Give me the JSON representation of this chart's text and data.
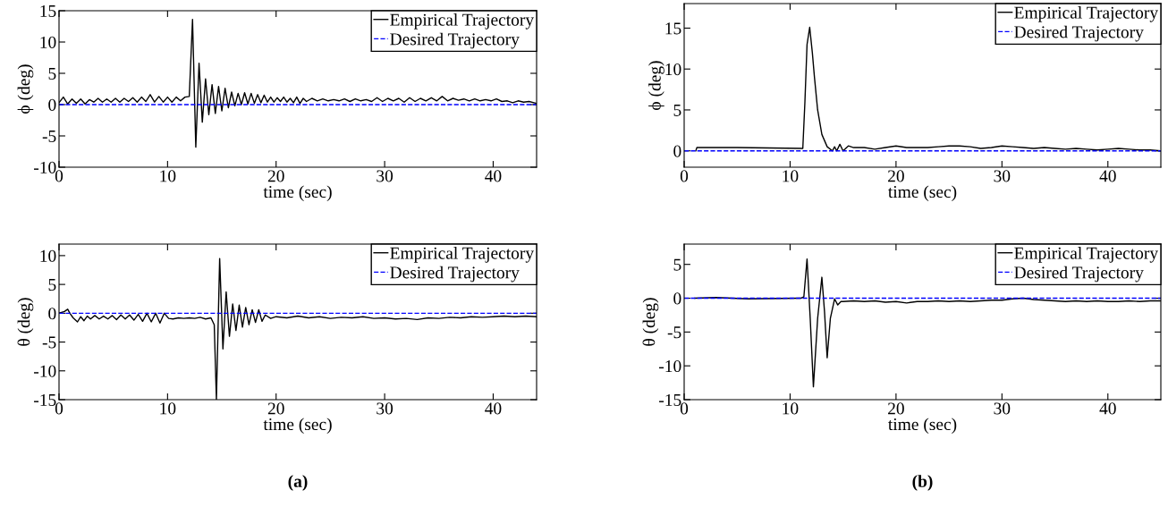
{
  "chart_data": [
    {
      "type": "line",
      "xlabel": "time (sec)",
      "ylabel": "ϕ (deg)",
      "xlim": [
        0,
        44
      ],
      "ylim": [
        -10,
        15
      ],
      "xticks": [
        0,
        10,
        20,
        30,
        40
      ],
      "yticks": [
        -10,
        -5,
        0,
        5,
        10,
        15
      ],
      "legend": "top right",
      "series": [
        {
          "name": "Empirical Trajectory",
          "color": "#000000",
          "line_style": "solid",
          "x": [
            0,
            0.4,
            0.8,
            1.2,
            1.6,
            2.0,
            2.4,
            2.8,
            3.2,
            3.6,
            4.0,
            4.4,
            4.8,
            5.2,
            5.6,
            6.0,
            6.4,
            6.8,
            7.2,
            7.6,
            8.0,
            8.4,
            8.8,
            9.2,
            9.6,
            10.0,
            10.4,
            10.8,
            11.2,
            11.6,
            12.0,
            12.3,
            12.6,
            12.9,
            13.2,
            13.5,
            13.8,
            14.1,
            14.4,
            14.7,
            15.0,
            15.3,
            15.6,
            15.9,
            16.2,
            16.5,
            16.8,
            17.1,
            17.4,
            17.7,
            18.0,
            18.3,
            18.6,
            18.9,
            19.2,
            19.5,
            19.8,
            20.1,
            20.4,
            20.7,
            21.0,
            21.3,
            21.6,
            21.9,
            22.2,
            22.5,
            22.8,
            23.3,
            23.8,
            24.3,
            24.8,
            25.3,
            25.8,
            26.3,
            26.8,
            27.3,
            27.8,
            28.3,
            28.8,
            29.3,
            29.8,
            30.3,
            30.8,
            31.3,
            31.8,
            32.3,
            32.8,
            33.3,
            33.8,
            34.3,
            34.8,
            35.3,
            35.8,
            36.3,
            36.8,
            37.3,
            37.8,
            38.3,
            38.8,
            39.3,
            39.8,
            40.3,
            40.8,
            41.3,
            41.8,
            42.3,
            42.8,
            43.3,
            44.0
          ],
          "values": [
            0.3,
            1.2,
            0.1,
            0.9,
            0.2,
            0.9,
            0.1,
            0.8,
            0.4,
            1.0,
            0.4,
            0.9,
            0.4,
            1.0,
            0.4,
            1.0,
            0.5,
            1.1,
            0.4,
            1.2,
            0.5,
            1.6,
            0.4,
            1.3,
            0.4,
            1.2,
            0.4,
            1.2,
            0.6,
            1.2,
            1.3,
            13.6,
            -6.8,
            6.6,
            -2.8,
            4.1,
            -1.6,
            3.2,
            -1.4,
            2.9,
            -1.0,
            2.6,
            -0.5,
            2.0,
            -0.2,
            1.8,
            0.0,
            1.9,
            0.1,
            1.8,
            0.2,
            1.6,
            0.3,
            1.5,
            0.4,
            1.2,
            0.4,
            1.1,
            0.5,
            1.2,
            0.4,
            1.0,
            0.3,
            1.2,
            0.2,
            1.0,
            0.5,
            1.0,
            0.6,
            0.9,
            0.6,
            0.8,
            0.6,
            0.9,
            0.5,
            0.9,
            0.6,
            0.8,
            0.5,
            1.1,
            0.5,
            1.0,
            0.6,
            1.0,
            0.4,
            1.1,
            0.5,
            1.0,
            0.6,
            1.1,
            0.6,
            1.3,
            0.6,
            1.0,
            0.7,
            0.9,
            0.6,
            0.9,
            0.6,
            0.8,
            0.6,
            0.9,
            0.5,
            0.6,
            0.3,
            0.6,
            0.4,
            0.5,
            0.2
          ]
        },
        {
          "name": "Desired Trajectory",
          "color": "#0000ff",
          "line_style": "dashed",
          "x": [
            0,
            44
          ],
          "values": [
            0,
            0
          ]
        }
      ]
    },
    {
      "type": "line",
      "xlabel": "time (sec)",
      "ylabel": "ϕ (deg)",
      "xlim": [
        0,
        45
      ],
      "ylim": [
        -2,
        18
      ],
      "xticks": [
        0,
        10,
        20,
        30,
        40
      ],
      "yticks": [
        0,
        5,
        10,
        15
      ],
      "legend": "top right",
      "series": [
        {
          "name": "Empirical Trajectory",
          "color": "#000000",
          "line_style": "solid",
          "x": [
            1.1,
            1.2,
            5,
            11.2,
            11.4,
            11.6,
            11.85,
            12.1,
            12.3,
            12.6,
            13.0,
            13.5,
            14.0,
            14.2,
            14.4,
            14.7,
            15.0,
            15.5,
            16,
            17,
            18,
            19,
            20,
            21,
            22,
            23,
            24,
            25,
            26,
            27,
            28,
            29,
            30,
            31,
            32,
            33,
            34,
            35,
            36,
            37,
            38,
            39,
            40,
            41,
            42,
            43,
            44,
            45
          ],
          "values": [
            0,
            0.4,
            0.4,
            0.3,
            6,
            13,
            15.1,
            12,
            9,
            5,
            2,
            0.5,
            0,
            0.5,
            0,
            0.8,
            0,
            0.6,
            0.4,
            0.4,
            0.2,
            0.4,
            0.6,
            0.4,
            0.4,
            0.4,
            0.5,
            0.6,
            0.6,
            0.5,
            0.3,
            0.4,
            0.6,
            0.5,
            0.4,
            0.3,
            0.4,
            0.3,
            0.2,
            0.3,
            0.2,
            0.1,
            0.2,
            0.3,
            0.2,
            0.1,
            0.1,
            0
          ]
        },
        {
          "name": "Desired Trajectory",
          "color": "#0000ff",
          "line_style": "dashed",
          "x": [
            0,
            45
          ],
          "values": [
            0,
            0
          ]
        }
      ]
    },
    {
      "type": "line",
      "xlabel": "time (sec)",
      "ylabel": "θ (deg)",
      "xlim": [
        0,
        44
      ],
      "ylim": [
        -15,
        12
      ],
      "xticks": [
        0,
        10,
        20,
        30,
        40
      ],
      "yticks": [
        -15,
        -10,
        -5,
        0,
        5,
        10
      ],
      "legend": "top right",
      "annotations": [
        "(a)"
      ],
      "series": [
        {
          "name": "Empirical Trajectory",
          "color": "#000000",
          "line_style": "solid",
          "x": [
            0,
            0.5,
            0.8,
            1.0,
            1.3,
            1.7,
            2.0,
            2.3,
            2.6,
            2.9,
            3.3,
            3.7,
            4.1,
            4.5,
            4.9,
            5.3,
            5.7,
            6.1,
            6.5,
            6.9,
            7.3,
            7.7,
            8.1,
            8.5,
            8.9,
            9.3,
            9.7,
            10.1,
            10.5,
            11,
            11.5,
            12,
            12.5,
            13,
            13.5,
            14,
            14.3,
            14.5,
            14.8,
            15.1,
            15.4,
            15.7,
            16.0,
            16.3,
            16.6,
            16.9,
            17.2,
            17.5,
            17.8,
            18.1,
            18.4,
            18.7,
            19.0,
            19.5,
            20,
            21,
            22,
            23,
            24,
            25,
            26,
            27,
            28,
            29,
            30,
            31,
            32,
            33,
            34,
            35,
            36,
            37,
            38,
            39,
            40,
            41,
            42,
            43,
            44
          ],
          "values": [
            0,
            0.3,
            0.7,
            0,
            -0.8,
            -1.5,
            -0.6,
            -1.3,
            -0.5,
            -1.0,
            -0.4,
            -1.0,
            -0.5,
            -1.0,
            -0.4,
            -1.1,
            -0.3,
            -1.0,
            -0.3,
            -1.2,
            -0.2,
            -1.4,
            0,
            -1.5,
            0,
            -1.7,
            0,
            -0.9,
            -1.0,
            -0.8,
            -0.9,
            -0.8,
            -0.9,
            -0.7,
            -1.0,
            -0.8,
            -2,
            -15,
            9.5,
            -6.2,
            3.7,
            -4.0,
            1.6,
            -3.0,
            1.4,
            -2.4,
            1.0,
            -2.0,
            0.6,
            -1.6,
            0.6,
            -1.4,
            -0.3,
            -0.9,
            -0.6,
            -0.8,
            -0.5,
            -0.8,
            -0.6,
            -0.9,
            -0.7,
            -0.8,
            -0.6,
            -0.9,
            -0.8,
            -1.0,
            -0.9,
            -1.1,
            -0.8,
            -0.9,
            -0.7,
            -0.8,
            -0.6,
            -0.7,
            -0.6,
            -0.5,
            -0.6,
            -0.5,
            -0.6
          ]
        },
        {
          "name": "Desired Trajectory",
          "color": "#0000ff",
          "line_style": "dashed",
          "x": [
            0,
            44
          ],
          "values": [
            0,
            0
          ]
        }
      ]
    },
    {
      "type": "line",
      "xlabel": "time (sec)",
      "ylabel": "θ (deg)",
      "xlim": [
        0,
        45
      ],
      "ylim": [
        -15,
        8
      ],
      "xticks": [
        0,
        10,
        20,
        30,
        40
      ],
      "yticks": [
        -15,
        -10,
        -5,
        0,
        5
      ],
      "legend": "top right",
      "annotations": [
        "(b)"
      ],
      "series": [
        {
          "name": "Empirical Trajectory",
          "color": "#000000",
          "line_style": "solid",
          "x": [
            1,
            3,
            6,
            11,
            11.3,
            11.6,
            11.9,
            12.2,
            12.6,
            13.0,
            13.25,
            13.5,
            13.8,
            14.2,
            14.5,
            14.8,
            15,
            16,
            17,
            18,
            19,
            20,
            21,
            22,
            23,
            24,
            25,
            26,
            27,
            28,
            29,
            30,
            31,
            32,
            33,
            34,
            35,
            36,
            37,
            38,
            39,
            40,
            41,
            42,
            43,
            44,
            45
          ],
          "values": [
            0,
            0.1,
            -0.1,
            0,
            0.2,
            5.8,
            -3,
            -13.1,
            -3,
            3.1,
            -2,
            -8.8,
            -3,
            -0.1,
            -1.0,
            -0.5,
            -0.5,
            -0.4,
            -0.5,
            -0.4,
            -0.6,
            -0.5,
            -0.7,
            -0.5,
            -0.5,
            -0.4,
            -0.5,
            -0.4,
            -0.5,
            -0.4,
            -0.3,
            -0.3,
            -0.1,
            0,
            -0.2,
            -0.3,
            -0.4,
            -0.5,
            -0.4,
            -0.5,
            -0.4,
            -0.5,
            -0.5,
            -0.4,
            -0.5,
            -0.4,
            -0.4
          ]
        },
        {
          "name": "Desired Trajectory",
          "color": "#0000ff",
          "line_style": "dashed",
          "x": [
            0,
            45
          ],
          "values": [
            0,
            0
          ]
        }
      ]
    }
  ]
}
